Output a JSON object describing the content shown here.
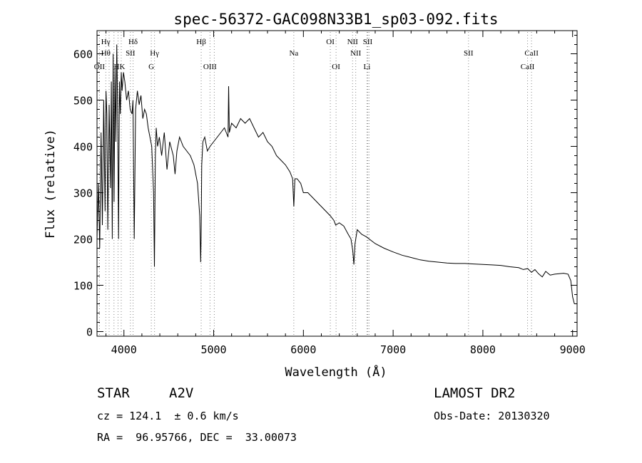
{
  "chart_data": {
    "type": "line",
    "title": "spec-56372-GAC098N33B1_sp03-092.fits",
    "xlabel": "Wavelength (Å)",
    "ylabel": "Flux (relative)",
    "xlim": [
      3700,
      9050
    ],
    "ylim": [
      -10,
      650
    ],
    "x_ticks": [
      4000,
      5000,
      6000,
      7000,
      8000,
      9000
    ],
    "x_tick_labels": [
      "4000",
      "5000",
      "6000",
      "7000",
      "8000",
      "9000"
    ],
    "y_ticks": [
      0,
      100,
      200,
      300,
      400,
      500,
      600
    ],
    "y_tick_labels": [
      "0",
      "100",
      "200",
      "300",
      "400",
      "500",
      "600"
    ],
    "grid": false,
    "series": [
      {
        "x": [
          3700,
          3715,
          3730,
          3745,
          3760,
          3775,
          3790,
          3800,
          3810,
          3820,
          3835,
          3850,
          3860,
          3870,
          3880,
          3890,
          3900,
          3910,
          3920,
          3930,
          3940,
          3950,
          3960,
          3970,
          3980,
          3995,
          4010,
          4030,
          4050,
          4070,
          4090,
          4101,
          4115,
          4130,
          4150,
          4170,
          4190,
          4210,
          4230,
          4250,
          4270,
          4290,
          4310,
          4330,
          4340,
          4350,
          4360,
          4375,
          4395,
          4420,
          4450,
          4480,
          4510,
          4550,
          4570,
          4590,
          4620,
          4660,
          4700,
          4740,
          4780,
          4820,
          4845,
          4855,
          4861,
          4867,
          4880,
          4900,
          4930,
          4960,
          5000,
          5040,
          5080,
          5120,
          5160,
          5167,
          5175,
          5200,
          5250,
          5300,
          5350,
          5400,
          5450,
          5500,
          5550,
          5600,
          5650,
          5700,
          5750,
          5800,
          5850,
          5880,
          5893,
          5905,
          5930,
          5970,
          6000,
          6050,
          6100,
          6150,
          6200,
          6250,
          6300,
          6340,
          6360,
          6400,
          6450,
          6500,
          6530,
          6550,
          6563,
          6575,
          6600,
          6650,
          6700,
          6800,
          6900,
          7000,
          7100,
          7200,
          7300,
          7400,
          7500,
          7600,
          7700,
          7800,
          7900,
          8000,
          8100,
          8200,
          8300,
          8400,
          8450,
          8500,
          8542,
          8580,
          8620,
          8662,
          8700,
          8750,
          8800,
          8850,
          8900,
          8950,
          8980,
          9000,
          9020
        ],
        "y": [
          200,
          320,
          180,
          430,
          230,
          500,
          260,
          520,
          470,
          220,
          490,
          310,
          540,
          200,
          600,
          280,
          570,
          410,
          620,
          480,
          200,
          540,
          470,
          560,
          520,
          560,
          540,
          500,
          520,
          480,
          470,
          500,
          200,
          480,
          520,
          490,
          510,
          460,
          480,
          470,
          440,
          420,
          400,
          300,
          140,
          380,
          440,
          400,
          420,
          380,
          430,
          350,
          410,
          380,
          340,
          390,
          420,
          400,
          390,
          380,
          360,
          320,
          250,
          150,
          210,
          360,
          410,
          420,
          390,
          400,
          410,
          420,
          430,
          440,
          420,
          530,
          430,
          450,
          440,
          460,
          450,
          460,
          440,
          420,
          430,
          410,
          400,
          380,
          370,
          360,
          345,
          330,
          270,
          330,
          330,
          320,
          300,
          300,
          290,
          280,
          270,
          260,
          250,
          240,
          230,
          235,
          228,
          210,
          200,
          175,
          145,
          190,
          220,
          210,
          205,
          190,
          180,
          172,
          165,
          160,
          155,
          152,
          150,
          148,
          147,
          147,
          146,
          145,
          144,
          143,
          140,
          138,
          134,
          136,
          128,
          134,
          125,
          118,
          130,
          122,
          124,
          125,
          126,
          124,
          110,
          75,
          60
        ]
      }
    ],
    "line_labels": [
      {
        "text": "Hγ",
        "x": 3797
      },
      {
        "text": "Hθ",
        "x": 3798
      },
      {
        "text": "OII",
        "x": 3727
      },
      {
        "text": "HK",
        "x": 3950
      },
      {
        "text": "Hδ",
        "x": 4102
      },
      {
        "text": "SII",
        "x": 4072
      },
      {
        "text": "Hγ",
        "x": 4341
      },
      {
        "text": "G",
        "x": 4305
      },
      {
        "text": "Hβ",
        "x": 4861
      },
      {
        "text": "OIII",
        "x": 4959
      },
      {
        "text": "Na",
        "x": 5893
      },
      {
        "text": "OI",
        "x": 6300
      },
      {
        "text": "OI",
        "x": 6364
      },
      {
        "text": "NII",
        "x": 6548
      },
      {
        "text": "NII",
        "x": 6583
      },
      {
        "text": "SII",
        "x": 6717
      },
      {
        "text": "Li",
        "x": 6708
      },
      {
        "text": "SII",
        "x": 7840
      },
      {
        "text": "CaII",
        "x": 8542
      },
      {
        "text": "CaII",
        "x": 8498
      }
    ],
    "line_markers": [
      3727,
      3798,
      3835,
      3889,
      3934,
      3970,
      4072,
      4102,
      4305,
      4341,
      4861,
      4959,
      5007,
      5893,
      6300,
      6364,
      6548,
      6583,
      6708,
      6717,
      6731,
      7840,
      8498,
      8542
    ]
  },
  "info": {
    "object_class": "STAR",
    "subclass": "A2V",
    "survey": "LAMOST DR2",
    "redshift": "cz = 124.1  ± 0.6 km/s",
    "obs_date": "Obs-Date: 20130320",
    "coords": "RA =  96.95766, DEC =  33.00073"
  }
}
